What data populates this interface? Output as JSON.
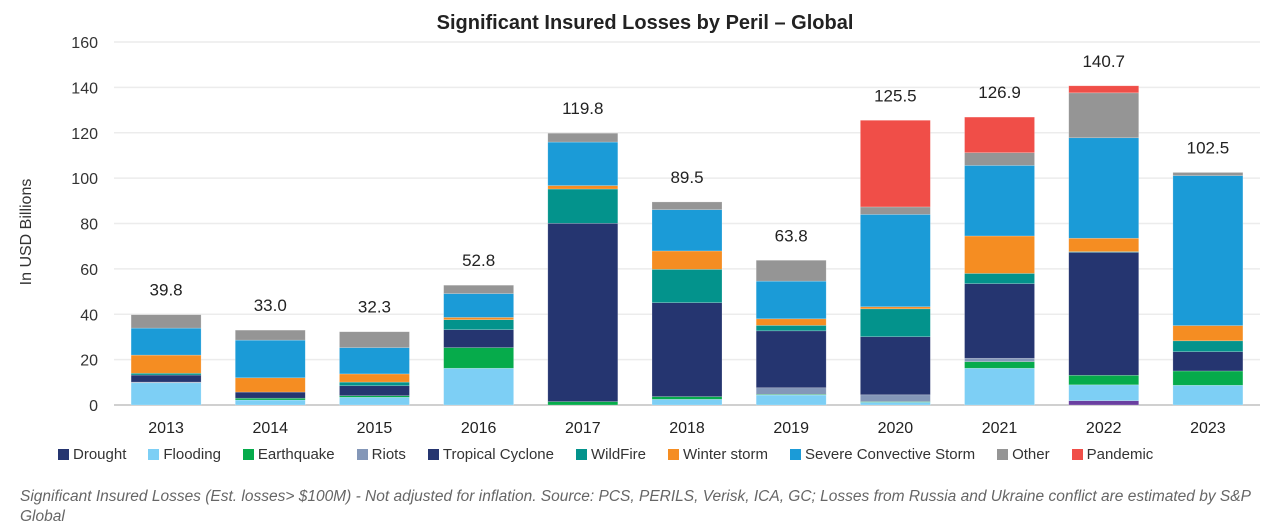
{
  "chart_data": {
    "type": "bar",
    "stacked": true,
    "title": "Significant Insured Losses by Peril – Global",
    "xlabel": "",
    "ylabel": "In USD Billions",
    "ylim": [
      0,
      160
    ],
    "yticks": [
      0,
      20,
      40,
      60,
      80,
      100,
      120,
      140,
      160
    ],
    "grid": true,
    "legend_position": "bottom",
    "categories": [
      "2013",
      "2014",
      "2015",
      "2016",
      "2017",
      "2018",
      "2019",
      "2020",
      "2021",
      "2022",
      "2023"
    ],
    "totals": [
      "39.8",
      "33.0",
      "32.3",
      "52.8",
      "119.8",
      "89.5",
      "63.8",
      "125.5",
      "126.9",
      "140.7",
      "102.5"
    ],
    "series": [
      {
        "name": "Drought",
        "color": "#253570",
        "values": [
          0,
          0,
          0,
          0,
          0,
          0,
          0,
          0,
          0,
          1.9,
          0
        ]
      },
      {
        "name": "Flooding",
        "color": "#7dcff5",
        "values": [
          9.8,
          2.2,
          3.4,
          16.2,
          0,
          2.5,
          4.4,
          1.2,
          16.2,
          7.0,
          8.7
        ]
      },
      {
        "name": "Earthquake",
        "color": "#06ab4b",
        "values": [
          0,
          0.8,
          0.7,
          9.1,
          1.5,
          1.2,
          0.3,
          0.3,
          2.9,
          4.2,
          6.3
        ]
      },
      {
        "name": "Riots",
        "color": "#8497b8",
        "values": [
          0.3,
          0,
          0,
          0,
          0,
          0,
          2.9,
          3.0,
          1.5,
          0,
          0
        ]
      },
      {
        "name": "Tropical Cyclone",
        "color": "#253570",
        "values": [
          3.1,
          2.7,
          4.4,
          7.9,
          78.6,
          41.4,
          25.1,
          25.6,
          32.9,
          54.2,
          8.5
        ]
      },
      {
        "name": "WildFire",
        "color": "#03938c",
        "values": [
          0.8,
          0,
          1.6,
          4.4,
          15.1,
          14.7,
          2.4,
          12.3,
          4.5,
          0.3,
          4.8
        ]
      },
      {
        "name": "Winter storm",
        "color": "#f58d22",
        "values": [
          8.0,
          6.3,
          3.6,
          1.0,
          1.5,
          8.1,
          2.9,
          0.9,
          16.5,
          5.9,
          6.7
        ]
      },
      {
        "name": "Severe Convective Storm",
        "color": "#1b9bd7",
        "values": [
          11.9,
          16.6,
          11.6,
          10.5,
          19.2,
          18.2,
          16.6,
          40.7,
          31.1,
          44.3,
          66.1
        ]
      },
      {
        "name": "Other",
        "color": "#959595",
        "values": [
          5.9,
          4.4,
          7.0,
          3.7,
          3.9,
          3.4,
          9.2,
          3.3,
          5.6,
          19.8,
          1.4
        ]
      },
      {
        "name": "Pandemic",
        "color": "#f04e48",
        "values": [
          0,
          0,
          0,
          0,
          0,
          0,
          0,
          38.2,
          15.7,
          3.1,
          0
        ]
      }
    ]
  },
  "footnote": "Significant Insured Losses (Est. losses> $100M) - Not adjusted for inflation. Source: PCS, PERILS, Verisk, ICA, GC; Losses from Russia and Ukraine conflict are estimated by S&P Global"
}
